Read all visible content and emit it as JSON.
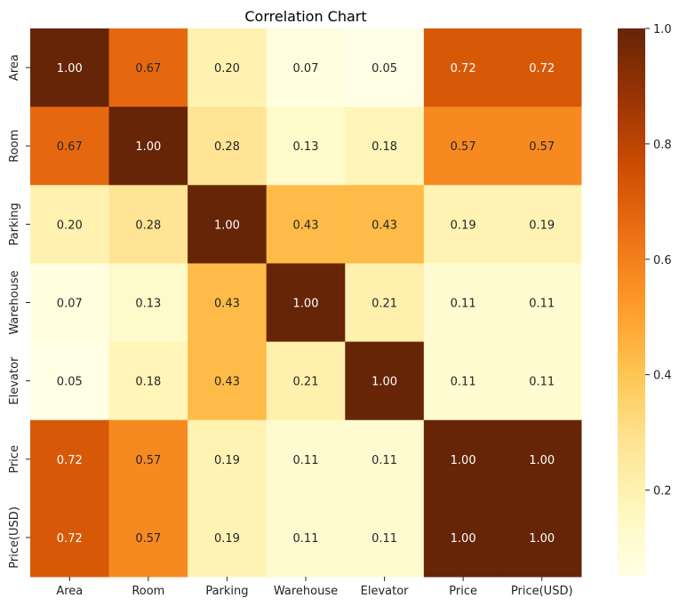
{
  "chart_data": {
    "type": "heatmap",
    "title": "Correlation Chart",
    "row_labels": [
      "Area",
      "Room",
      "Parking",
      "Warehouse",
      "Elevator",
      "Price",
      "Price(USD)"
    ],
    "col_labels": [
      "Area",
      "Room",
      "Parking",
      "Warehouse",
      "Elevator",
      "Price",
      "Price(USD)"
    ],
    "values": [
      [
        1.0,
        0.67,
        0.2,
        0.07,
        0.05,
        0.72,
        0.72
      ],
      [
        0.67,
        1.0,
        0.28,
        0.13,
        0.18,
        0.57,
        0.57
      ],
      [
        0.2,
        0.28,
        1.0,
        0.43,
        0.43,
        0.19,
        0.19
      ],
      [
        0.07,
        0.13,
        0.43,
        1.0,
        0.21,
        0.11,
        0.11
      ],
      [
        0.05,
        0.18,
        0.43,
        0.21,
        1.0,
        0.11,
        0.11
      ],
      [
        0.72,
        0.57,
        0.19,
        0.11,
        0.11,
        1.0,
        1.0
      ],
      [
        0.72,
        0.57,
        0.19,
        0.11,
        0.11,
        1.0,
        1.0
      ]
    ],
    "value_format": "2 decimals",
    "colormap": "YlOrBr",
    "color_range": [
      0.05,
      1.0
    ],
    "colorbar_ticks": [
      "0.2",
      "0.4",
      "0.6",
      "0.8",
      "1.0"
    ],
    "colorbar_tick_values": [
      0.2,
      0.4,
      0.6,
      0.8,
      1.0
    ]
  }
}
